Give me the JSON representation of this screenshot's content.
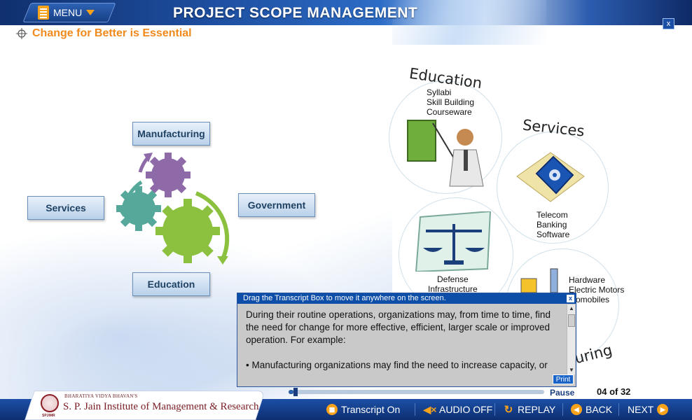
{
  "header": {
    "menu_label": "MENU",
    "app_title": "PROJECT SCOPE MANAGEMENT",
    "close_label": "x"
  },
  "slide": {
    "title": "Change for Better is Essential"
  },
  "cycle": {
    "top": "Manufacturing",
    "left": "Services",
    "right": "Government",
    "bottom": "Education",
    "gear_colors": [
      "#8e6aa8",
      "#55a89a",
      "#8cc13f"
    ]
  },
  "circles": {
    "education": {
      "title": "Education",
      "lines": [
        "Syllabi",
        "Skill Building",
        "Courseware"
      ]
    },
    "services": {
      "title": "Services",
      "lines": [
        "Telecom",
        "Banking",
        "Software"
      ]
    },
    "government": {
      "lines": [
        "Defense",
        "Infrastructure"
      ]
    },
    "manufacturing": {
      "title_fragment": "uring",
      "lines": [
        "Hardware",
        "Electric Motors",
        "utomobiles"
      ]
    }
  },
  "transcript": {
    "bar_text": "Drag the Transcript Box to move it anywhere on the screen.",
    "close_label": "x",
    "paragraph1": "During their routine operations, organizations may, from time to time, find the need for change for more effective, efficient, larger scale or improved operation. For example:",
    "paragraph2": "• Manufacturing organizations may find the need to increase capacity, or",
    "print_label": "Print"
  },
  "playback": {
    "progress": 0.02,
    "status": "Pause",
    "page": "04 of 32"
  },
  "footer": {
    "org_small": "BHARATIYA VIDYA BHAVAN'S",
    "org_name": "S. P. Jain Institute of Management & Research",
    "org_abbr": "SPJIMR",
    "transcript_label": "Transcript On",
    "audio_label": "AUDIO OFF",
    "replay_label": "REPLAY",
    "back_label": "BACK",
    "next_label": "NEXT"
  },
  "colors": {
    "accent_orange": "#f18a1c",
    "header_blue": "#1d4d9e",
    "transcript_bar": "#0c4ea8"
  }
}
